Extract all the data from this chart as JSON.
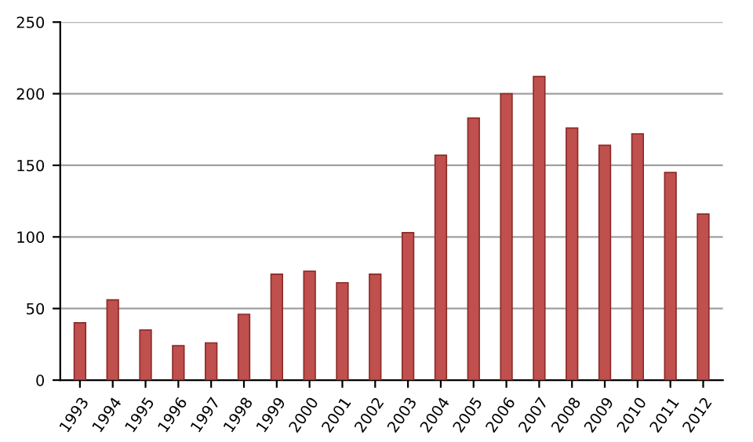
{
  "chart_data": {
    "type": "bar",
    "categories": [
      "1993",
      "1994",
      "1995",
      "1996",
      "1997",
      "1998",
      "1999",
      "2000",
      "2001",
      "2002",
      "2003",
      "2004",
      "2005",
      "2006",
      "2007",
      "2008",
      "2009",
      "2010",
      "2011",
      "2012"
    ],
    "values": [
      40,
      56,
      35,
      24,
      26,
      46,
      74,
      76,
      68,
      74,
      103,
      157,
      183,
      200,
      212,
      176,
      164,
      172,
      145,
      116
    ],
    "color": "#c0504d",
    "ylim": [
      0,
      250
    ],
    "yticks": [
      0,
      50,
      100,
      150,
      200,
      250
    ],
    "grid": "y"
  }
}
